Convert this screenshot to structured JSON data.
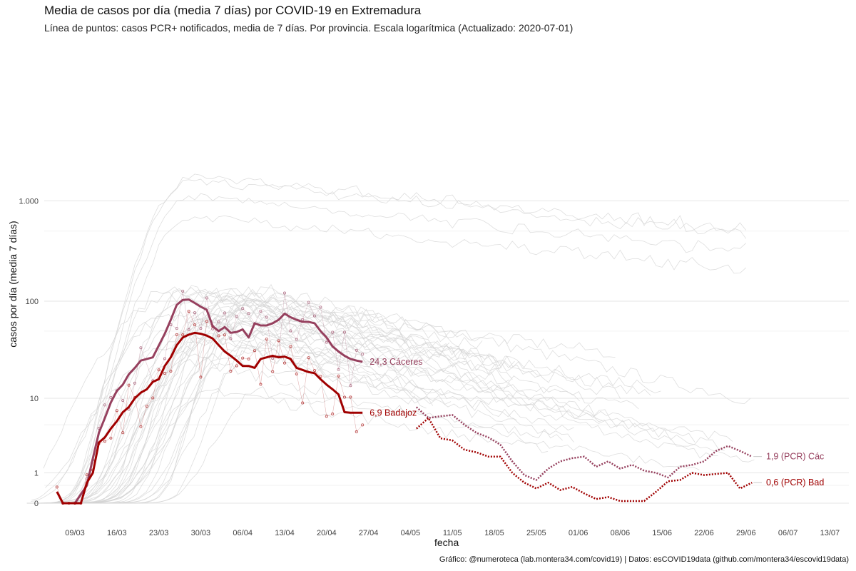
{
  "chart_data": {
    "type": "line",
    "title": "Media de casos por día (media 7 días) por COVID-19 en Extremadura",
    "subtitle": "Línea de puntos: casos PCR+ notificados, media de 7 días. Por provincia. Escala logarítmica  (Actualizado: 2020-07-01)",
    "xlabel": "fecha",
    "ylabel": "casos por día (media 7 días)",
    "caption": "Gráfico: @numeroteca (lab.montera34.com/covid19) | Datos: esCOVID19data (github.com/montera34/escovid19data)",
    "y_scale": "log",
    "y_ticks": [
      {
        "value": 0,
        "label": "0"
      },
      {
        "value": 1,
        "label": "1"
      },
      {
        "value": 10,
        "label": "10"
      },
      {
        "value": 100,
        "label": "100"
      },
      {
        "value": 1000,
        "label": "1.000"
      }
    ],
    "x_ticks": [
      "09/03",
      "16/03",
      "23/03",
      "30/03",
      "06/04",
      "13/04",
      "20/04",
      "27/04",
      "04/05",
      "11/05",
      "18/05",
      "25/05",
      "01/06",
      "08/06",
      "15/06",
      "22/06",
      "29/06",
      "06/07",
      "13/07"
    ],
    "x_range": [
      "2020-03-02",
      "2020-07-14"
    ],
    "grid": true,
    "colors": {
      "caceres": "#96405e",
      "badajoz": "#a00000",
      "background_lines": "#d3d3d3"
    },
    "series": [
      {
        "name": "Cáceres",
        "style": "solid",
        "end_label": "24,3 Cáceres",
        "x": [
          "2020-03-07",
          "2020-03-09",
          "2020-03-11",
          "2020-03-12",
          "2020-03-13",
          "2020-03-14",
          "2020-03-15",
          "2020-03-16",
          "2020-03-17",
          "2020-03-18",
          "2020-03-19",
          "2020-03-20",
          "2020-03-22",
          "2020-03-24",
          "2020-03-25",
          "2020-03-26",
          "2020-03-27",
          "2020-03-28",
          "2020-03-29",
          "2020-03-30",
          "2020-03-31",
          "2020-04-01",
          "2020-04-02",
          "2020-04-03",
          "2020-04-04",
          "2020-04-05",
          "2020-04-06",
          "2020-04-07",
          "2020-04-08",
          "2020-04-09",
          "2020-04-10",
          "2020-04-11",
          "2020-04-12",
          "2020-04-13",
          "2020-04-14",
          "2020-04-15",
          "2020-04-16",
          "2020-04-17",
          "2020-04-18",
          "2020-04-19",
          "2020-04-20",
          "2020-04-21",
          "2020-04-22",
          "2020-04-23",
          "2020-04-24",
          "2020-04-25",
          "2020-04-26"
        ],
        "y": [
          0,
          0,
          0.5,
          1.8,
          4,
          6,
          9,
          12,
          14,
          18,
          21,
          25,
          27,
          47,
          65,
          92,
          103,
          104,
          96,
          88,
          82,
          56,
          50,
          55,
          48,
          49,
          52,
          43,
          60,
          57,
          57,
          60,
          65,
          75,
          69,
          65,
          62,
          62,
          60,
          50,
          43,
          35,
          31,
          28,
          26,
          25,
          24.3
        ]
      },
      {
        "name": "Badajoz",
        "style": "solid",
        "end_label": "6,9 Badajoz",
        "x": [
          "2020-03-06",
          "2020-03-07",
          "2020-03-08",
          "2020-03-09",
          "2020-03-10",
          "2020-03-11",
          "2020-03-12",
          "2020-03-13",
          "2020-03-14",
          "2020-03-15",
          "2020-03-16",
          "2020-03-17",
          "2020-03-18",
          "2020-03-19",
          "2020-03-20",
          "2020-03-21",
          "2020-03-22",
          "2020-03-23",
          "2020-03-24",
          "2020-03-25",
          "2020-03-26",
          "2020-03-27",
          "2020-03-28",
          "2020-03-29",
          "2020-03-30",
          "2020-03-31",
          "2020-04-01",
          "2020-04-02",
          "2020-04-03",
          "2020-04-04",
          "2020-04-05",
          "2020-04-06",
          "2020-04-07",
          "2020-04-08",
          "2020-04-09",
          "2020-04-10",
          "2020-04-11",
          "2020-04-12",
          "2020-04-13",
          "2020-04-14",
          "2020-04-15",
          "2020-04-16",
          "2020-04-17",
          "2020-04-18",
          "2020-04-19",
          "2020-04-20",
          "2020-04-21",
          "2020-04-22",
          "2020-04-23",
          "2020-04-24",
          "2020-04-25",
          "2020-04-26"
        ],
        "y": [
          0.3,
          0,
          0,
          0,
          0,
          0.6,
          1,
          3,
          3.5,
          4.5,
          5.5,
          7,
          8,
          10,
          11.5,
          12.5,
          15,
          16,
          22,
          27,
          36,
          43,
          46,
          48,
          47,
          45,
          42,
          36,
          31,
          28,
          25,
          22,
          22,
          21,
          26,
          27,
          28,
          27,
          27.5,
          26,
          21,
          20,
          19,
          18.5,
          16,
          14,
          12.5,
          11,
          7,
          6.9,
          6.9,
          6.9
        ]
      },
      {
        "name": "Cáceres (PCR)",
        "style": "dotted",
        "end_label": "1,9 (PCR) Các",
        "x": [
          "2020-05-05",
          "2020-05-07",
          "2020-05-09",
          "2020-05-11",
          "2020-05-13",
          "2020-05-15",
          "2020-05-17",
          "2020-05-19",
          "2020-05-21",
          "2020-05-23",
          "2020-05-25",
          "2020-05-27",
          "2020-05-29",
          "2020-05-31",
          "2020-06-02",
          "2020-06-04",
          "2020-06-06",
          "2020-06-08",
          "2020-06-10",
          "2020-06-12",
          "2020-06-14",
          "2020-06-16",
          "2020-06-18",
          "2020-06-20",
          "2020-06-22",
          "2020-06-24",
          "2020-06-26",
          "2020-06-28",
          "2020-06-30"
        ],
        "y": [
          8,
          6,
          6.3,
          6.5,
          5,
          4,
          3.5,
          2.8,
          1.6,
          0.9,
          0.7,
          1.2,
          1.6,
          1.8,
          1.9,
          1.3,
          1.6,
          1.2,
          1.4,
          1.1,
          1.0,
          0.8,
          1.3,
          1.4,
          1.6,
          2.3,
          2.7,
          2.3,
          1.9
        ]
      },
      {
        "name": "Badajoz (PCR)",
        "style": "dotted",
        "end_label": "0,6 (PCR) Bad",
        "x": [
          "2020-05-05",
          "2020-05-07",
          "2020-05-09",
          "2020-05-11",
          "2020-05-13",
          "2020-05-15",
          "2020-05-17",
          "2020-05-19",
          "2020-05-21",
          "2020-05-23",
          "2020-05-25",
          "2020-05-27",
          "2020-05-29",
          "2020-05-31",
          "2020-06-02",
          "2020-06-04",
          "2020-06-06",
          "2020-06-08",
          "2020-06-10",
          "2020-06-12",
          "2020-06-14",
          "2020-06-16",
          "2020-06-18",
          "2020-06-20",
          "2020-06-22",
          "2020-06-24",
          "2020-06-26",
          "2020-06-28",
          "2020-06-30"
        ],
        "y": [
          4.5,
          6,
          3.4,
          3.2,
          2.4,
          2.2,
          1.9,
          1.9,
          1.0,
          0.6,
          0.4,
          0.6,
          0.35,
          0.45,
          0.25,
          0.1,
          0.15,
          0.05,
          0.05,
          0.05,
          0.3,
          0.65,
          0.7,
          1.0,
          0.9,
          0.95,
          1.0,
          0.4,
          0.6
        ]
      }
    ]
  }
}
